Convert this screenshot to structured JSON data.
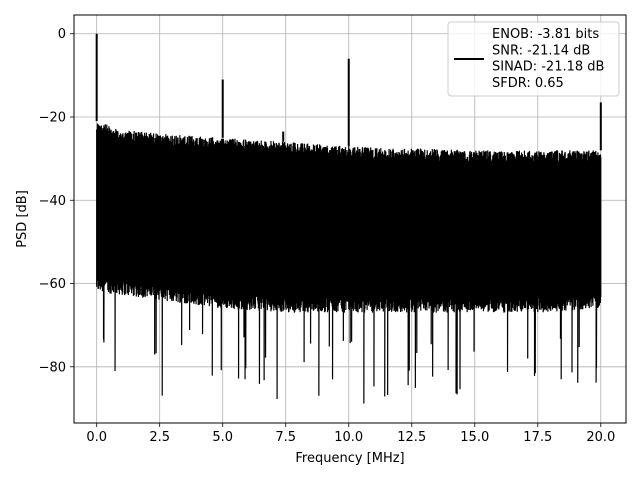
{
  "chart_data": {
    "type": "line",
    "title": "",
    "xlabel": "Frequency [MHz]",
    "ylabel": "PSD [dB]",
    "xlim": [
      -0.9,
      21.0
    ],
    "ylim": [
      -93.5,
      4.5
    ],
    "xticks": [
      0.0,
      2.5,
      5.0,
      7.5,
      10.0,
      12.5,
      15.0,
      17.5,
      20.0
    ],
    "xtick_labels": [
      "0.0",
      "2.5",
      "5.0",
      "7.5",
      "10.0",
      "12.5",
      "15.0",
      "17.5",
      "20.0"
    ],
    "yticks": [
      0,
      -20,
      -40,
      -60,
      -80
    ],
    "ytick_labels": [
      "0",
      "−20",
      "−40",
      "−60",
      "−80"
    ],
    "grid": true,
    "legend_position": "top-right",
    "line_color": "#000000",
    "noise_band": {
      "x_range": [
        0.0,
        20.0
      ],
      "upper_envelope": [
        [
          0.0,
          -21
        ],
        [
          1.0,
          -23
        ],
        [
          2.5,
          -24
        ],
        [
          5.0,
          -25
        ],
        [
          7.5,
          -26
        ],
        [
          10.0,
          -27
        ],
        [
          12.5,
          -27.5
        ],
        [
          15.0,
          -28
        ],
        [
          17.5,
          -28
        ],
        [
          20.0,
          -28
        ]
      ],
      "lower_envelope": [
        [
          0.0,
          -62
        ],
        [
          2.5,
          -64
        ],
        [
          5.0,
          -66
        ],
        [
          7.5,
          -67
        ],
        [
          10.0,
          -67
        ],
        [
          12.5,
          -67
        ],
        [
          15.0,
          -67
        ],
        [
          17.5,
          -67
        ],
        [
          20.0,
          -66
        ]
      ],
      "deep_dip_floor": -89
    },
    "spikes": [
      {
        "x": 0.0,
        "y": 0.0
      },
      {
        "x": 5.0,
        "y": -11
      },
      {
        "x": 7.4,
        "y": -23.5
      },
      {
        "x": 10.0,
        "y": -6
      },
      {
        "x": 20.0,
        "y": -16.5
      }
    ],
    "legend": {
      "lines": [
        "ENOB: -3.81 bits",
        "SNR: -21.14 dB",
        "SINAD: -21.18 dB",
        "SFDR: 0.65"
      ]
    }
  }
}
